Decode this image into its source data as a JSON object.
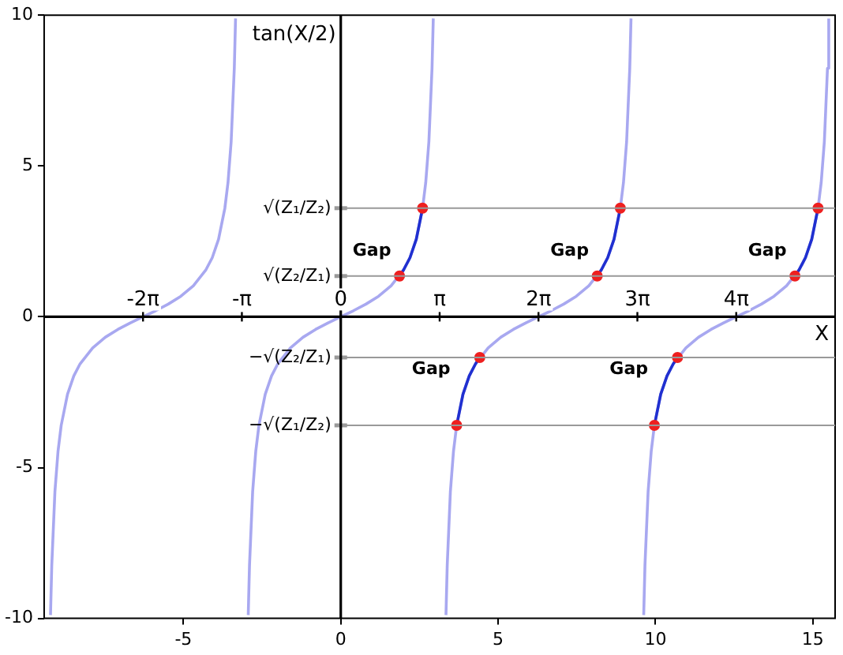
{
  "chart_data": {
    "type": "line",
    "xlabel": "X",
    "ylabel": "tan(X/2)",
    "xlim": [
      -9.425,
      15.708
    ],
    "xticks": [
      -5,
      0,
      5,
      10,
      15
    ],
    "ylim": [
      -10,
      10
    ],
    "yticks": [
      -10,
      -5,
      0,
      5,
      10
    ],
    "x2lim": [
      -9.425,
      15.708
    ],
    "x2ticks": [
      {
        "value": -6.283,
        "label": "-2π"
      },
      {
        "value": -3.142,
        "label": "-π"
      },
      {
        "value": 0,
        "label": "0"
      },
      {
        "value": 3.142,
        "label": "π"
      },
      {
        "value": 6.283,
        "label": "2π"
      },
      {
        "value": 9.425,
        "label": "3π"
      },
      {
        "value": 12.566,
        "label": "4π"
      }
    ],
    "grid": false,
    "legend": false,
    "series": [
      {
        "color": "#a8a8f0",
        "x": [
          -9.223,
          -9.183,
          -9.083,
          -8.983,
          -8.883,
          -8.683,
          -8.483,
          -8.283,
          -7.883,
          -7.483,
          -7.083,
          -6.683,
          -6.283,
          -5.883,
          -5.483,
          -5.083,
          -4.683,
          -4.283,
          -4.083,
          -3.883,
          -3.683,
          -3.583,
          -3.483,
          -3.383,
          -3.343
        ],
        "values": [
          -9.89,
          -8.24,
          -5.8,
          -4.45,
          -3.6,
          -2.57,
          -1.96,
          -1.56,
          -1.03,
          -0.68,
          -0.42,
          -0.2,
          0,
          0.2,
          0.42,
          0.68,
          1.03,
          1.56,
          1.96,
          2.57,
          3.6,
          4.45,
          5.8,
          8.24,
          9.89
        ]
      },
      {
        "color": "#a8a8f0",
        "x": [
          -2.94,
          -2.9,
          -2.8,
          -2.7,
          -2.6,
          -2.4,
          -2.2,
          -2,
          -1.6,
          -1.2,
          -0.8,
          -0.4,
          0,
          0.4,
          0.8,
          1.2,
          1.6,
          2,
          2.2,
          2.4,
          2.6,
          2.7,
          2.8,
          2.9,
          2.94
        ],
        "values": [
          -9.89,
          -8.24,
          -5.8,
          -4.45,
          -3.6,
          -2.57,
          -1.96,
          -1.56,
          -1.03,
          -0.68,
          -0.42,
          -0.2,
          0,
          0.2,
          0.42,
          0.68,
          1.03,
          1.56,
          1.96,
          2.57,
          3.6,
          4.45,
          5.8,
          8.24,
          9.89
        ]
      },
      {
        "color": "#a8a8f0",
        "x": [
          3.343,
          3.383,
          3.483,
          3.583,
          3.683,
          3.883,
          4.083,
          4.283,
          4.683,
          5.083,
          5.483,
          5.883,
          6.283,
          6.683,
          7.083,
          7.483,
          7.883,
          8.283,
          8.483,
          8.683,
          8.883,
          8.983,
          9.083,
          9.183,
          9.223
        ],
        "values": [
          -9.89,
          -8.24,
          -5.8,
          -4.45,
          -3.6,
          -2.57,
          -1.96,
          -1.56,
          -1.03,
          -0.68,
          -0.42,
          -0.2,
          0,
          0.2,
          0.42,
          0.68,
          1.03,
          1.56,
          1.96,
          2.57,
          3.6,
          4.45,
          5.8,
          8.24,
          9.89
        ]
      },
      {
        "color": "#a8a8f0",
        "x": [
          9.626,
          9.666,
          9.766,
          9.866,
          9.966,
          10.166,
          10.366,
          10.566,
          10.966,
          11.366,
          11.766,
          12.166,
          12.566,
          12.966,
          13.366,
          13.766,
          14.166,
          14.566,
          14.766,
          14.966,
          15.166,
          15.266,
          15.366,
          15.466,
          15.506
        ],
        "values": [
          -9.89,
          -8.24,
          -5.8,
          -4.45,
          -3.6,
          -2.57,
          -1.96,
          -1.56,
          -1.03,
          -0.68,
          -0.42,
          -0.2,
          0,
          0.2,
          0.42,
          0.68,
          1.03,
          1.56,
          1.96,
          2.57,
          3.6,
          4.45,
          5.8,
          8.24,
          9.89
        ]
      },
      {
        "color": "#2030d0",
        "x": [
          1.866,
          2.0,
          2.2,
          2.4,
          2.6
        ],
        "values": [
          1.35,
          1.56,
          1.96,
          2.57,
          3.6
        ]
      },
      {
        "color": "#2030d0",
        "x": [
          8.149,
          8.283,
          8.483,
          8.683,
          8.883
        ],
        "values": [
          1.35,
          1.56,
          1.96,
          2.57,
          3.6
        ]
      },
      {
        "color": "#2030d0",
        "x": [
          14.432,
          14.566,
          14.766,
          14.966,
          15.166
        ],
        "values": [
          1.35,
          1.56,
          1.96,
          2.57,
          3.6
        ]
      },
      {
        "color": "#2030d0",
        "x": [
          3.683,
          3.883,
          4.083,
          4.283,
          4.417
        ],
        "values": [
          -3.6,
          -2.57,
          -1.96,
          -1.56,
          -1.35
        ]
      },
      {
        "color": "#2030d0",
        "x": [
          9.966,
          10.166,
          10.366,
          10.566,
          10.7
        ],
        "values": [
          -3.6,
          -2.57,
          -1.96,
          -1.56,
          -1.35
        ]
      },
      {
        "type": "scatter",
        "marker": "circle",
        "color": "#ee2020",
        "x": [
          1.866,
          2.6,
          8.149,
          8.883,
          14.432,
          15.166,
          3.683,
          4.417,
          9.966,
          10.7
        ],
        "values": [
          1.35,
          3.6,
          1.35,
          3.6,
          1.35,
          3.6,
          -3.6,
          -1.35,
          -3.6,
          -1.35
        ]
      }
    ],
    "ref_lines": [
      {
        "axis": "x",
        "value": 0,
        "color": "#000000"
      },
      {
        "axis": "y",
        "value": 3.6,
        "label": "√(Z₁/Z₂)",
        "color": "#999999"
      },
      {
        "axis": "y",
        "value": 1.35,
        "label": "√(Z₂/Z₁)",
        "color": "#999999"
      },
      {
        "axis": "y",
        "value": -1.35,
        "label": "−√(Z₂/Z₁)",
        "color": "#999999"
      },
      {
        "axis": "y",
        "value": -3.6,
        "label": "−√(Z₁/Z₂)",
        "color": "#999999"
      }
    ],
    "annotations": [
      {
        "text": "Gap",
        "x": 2.2,
        "y": 1.96
      },
      {
        "text": "Gap",
        "x": 8.483,
        "y": 1.96
      },
      {
        "text": "Gap",
        "x": 14.766,
        "y": 1.96
      },
      {
        "text": "Gap",
        "x": 4.083,
        "y": -1.96
      },
      {
        "text": "Gap",
        "x": 10.366,
        "y": -1.96
      }
    ]
  }
}
